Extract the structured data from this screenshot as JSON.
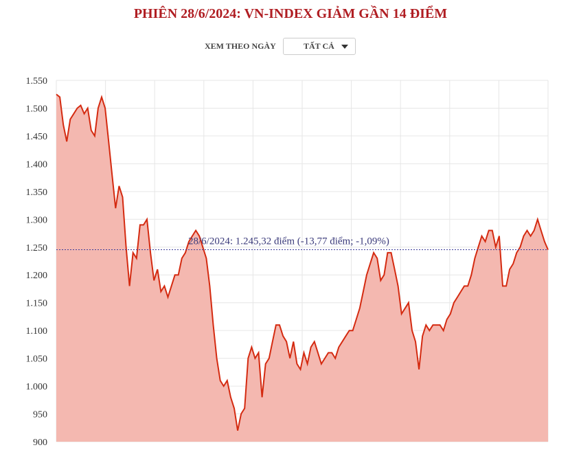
{
  "title": "PHIÊN 28/6/2024: VN-INDEX GIẢM GẦN 14 ĐIỂM",
  "filter": {
    "label": "XEM THEO NGÀY",
    "selected": "TẤT CẢ",
    "icon": "caret-down-icon"
  },
  "chart_data": {
    "type": "area",
    "title": "PHIÊN 28/6/2024: VN-INDEX GIẢM GẦN 14 ĐIỂM",
    "xlabel": "",
    "ylabel": "",
    "ylim": [
      900,
      1550
    ],
    "yticks": [
      900,
      950,
      1000,
      1050,
      1100,
      1150,
      1200,
      1250,
      1300,
      1350,
      1400,
      1450,
      1500,
      1550
    ],
    "ytick_labels": [
      "900",
      "950",
      "1.000",
      "1.050",
      "1.100",
      "1.150",
      "1.200",
      "1.250",
      "1.300",
      "1.350",
      "1.400",
      "1.450",
      "1.500",
      "1.550"
    ],
    "grid": true,
    "line_color": "#d42a10",
    "fill_color": "#f4b8b0",
    "reference_line": {
      "value": 1245.32,
      "color": "#3a3a9a",
      "label": "28/6/2024: 1.245,32 điểm (-13,77 điểm; -1,09%)"
    },
    "values": [
      1525,
      1520,
      1470,
      1440,
      1480,
      1490,
      1500,
      1505,
      1490,
      1500,
      1460,
      1450,
      1500,
      1520,
      1500,
      1440,
      1380,
      1320,
      1360,
      1340,
      1250,
      1180,
      1240,
      1230,
      1290,
      1290,
      1300,
      1240,
      1190,
      1210,
      1170,
      1180,
      1160,
      1180,
      1200,
      1200,
      1230,
      1240,
      1260,
      1270,
      1280,
      1270,
      1250,
      1230,
      1180,
      1110,
      1050,
      1010,
      1000,
      1010,
      980,
      960,
      920,
      950,
      960,
      1050,
      1070,
      1050,
      1060,
      980,
      1040,
      1050,
      1080,
      1110,
      1110,
      1090,
      1080,
      1050,
      1080,
      1040,
      1030,
      1060,
      1040,
      1070,
      1080,
      1060,
      1040,
      1050,
      1060,
      1060,
      1050,
      1070,
      1080,
      1090,
      1100,
      1100,
      1120,
      1140,
      1170,
      1200,
      1220,
      1240,
      1230,
      1190,
      1200,
      1240,
      1240,
      1210,
      1180,
      1130,
      1140,
      1150,
      1100,
      1080,
      1030,
      1090,
      1110,
      1100,
      1110,
      1110,
      1110,
      1100,
      1120,
      1130,
      1150,
      1160,
      1170,
      1180,
      1180,
      1200,
      1230,
      1250,
      1270,
      1260,
      1280,
      1280,
      1250,
      1270,
      1180,
      1180,
      1210,
      1220,
      1240,
      1250,
      1270,
      1280,
      1270,
      1280,
      1300,
      1280,
      1260,
      1245.32
    ]
  }
}
